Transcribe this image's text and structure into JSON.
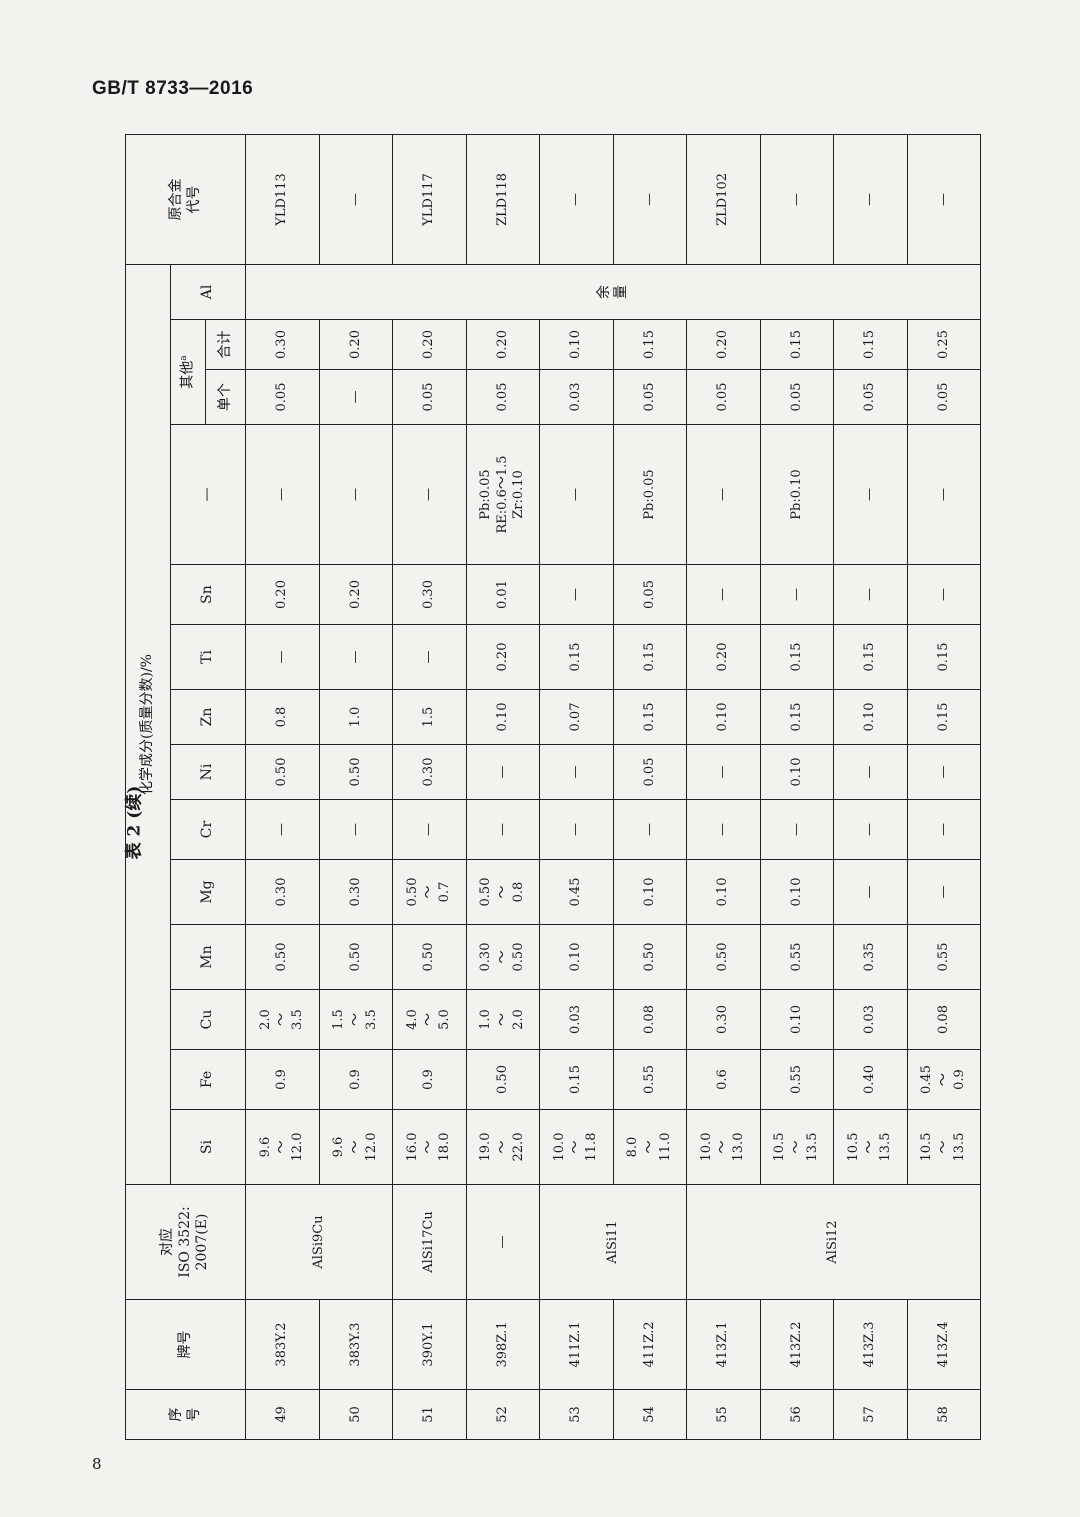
{
  "header_left": "GB/T 8733—2016",
  "page_number": "8",
  "caption": "表 2 (续)",
  "table": {
    "headers": {
      "seq": "序\n号",
      "grade": "牌号",
      "iso": "对应\nISO 3522:\n2007(E)",
      "chem": "化学成分(质量分数)/%",
      "elements": [
        "Si",
        "Fe",
        "Cu",
        "Mn",
        "Mg",
        "Cr",
        "Ni",
        "Zn",
        "Ti",
        "Sn"
      ],
      "other_elements": "—",
      "others": "其他",
      "others_note": "a",
      "single": "单个",
      "total": "合计",
      "al": "Al",
      "old_code": "原合金\n代号"
    },
    "al_value": "余\n量",
    "rows": [
      {
        "seq": "49",
        "grade": "383Y.2",
        "iso": "AlSi9Cu",
        "Si": "9.6\n～\n12.0",
        "Fe": "0.9",
        "Cu": "2.0\n～\n3.5",
        "Mn": "0.50",
        "Mg": "0.30",
        "Cr": "—",
        "Ni": "0.50",
        "Zn": "0.8",
        "Ti": "—",
        "Sn": "0.20",
        "other": "—",
        "single": "0.05",
        "total": "0.30",
        "old": "YLD113"
      },
      {
        "seq": "50",
        "grade": "383Y.3",
        "iso": "AlSi9Cu",
        "Si": "9.6\n～\n12.0",
        "Fe": "0.9",
        "Cu": "1.5\n～\n3.5",
        "Mn": "0.50",
        "Mg": "0.30",
        "Cr": "—",
        "Ni": "0.50",
        "Zn": "1.0",
        "Ti": "—",
        "Sn": "0.20",
        "other": "—",
        "single": "—",
        "total": "0.20",
        "old": "—"
      },
      {
        "seq": "51",
        "grade": "390Y.1",
        "iso": "AlSi17Cu",
        "Si": "16.0\n～\n18.0",
        "Fe": "0.9",
        "Cu": "4.0\n～\n5.0",
        "Mn": "0.50",
        "Mg": "0.50\n～\n0.7",
        "Cr": "—",
        "Ni": "0.30",
        "Zn": "1.5",
        "Ti": "—",
        "Sn": "0.30",
        "other": "—",
        "single": "0.05",
        "total": "0.20",
        "old": "YLD117"
      },
      {
        "seq": "52",
        "grade": "398Z.1",
        "iso": "—",
        "Si": "19.0\n～\n22.0",
        "Fe": "0.50",
        "Cu": "1.0\n～\n2.0",
        "Mn": "0.30\n～\n0.50",
        "Mg": "0.50\n～\n0.8",
        "Cr": "—",
        "Ni": "—",
        "Zn": "0.10",
        "Ti": "0.20",
        "Sn": "0.01",
        "other": "Pb:0.05\nRE:0.6～1.5\nZr:0.10",
        "single": "0.05",
        "total": "0.20",
        "old": "ZLD118"
      },
      {
        "seq": "53",
        "grade": "411Z.1",
        "iso": "AlSi11",
        "Si": "10.0\n～\n11.8",
        "Fe": "0.15",
        "Cu": "0.03",
        "Mn": "0.10",
        "Mg": "0.45",
        "Cr": "—",
        "Ni": "—",
        "Zn": "0.07",
        "Ti": "0.15",
        "Sn": "—",
        "other": "—",
        "single": "0.03",
        "total": "0.10",
        "old": "—"
      },
      {
        "seq": "54",
        "grade": "411Z.2",
        "iso": "AlSi11",
        "Si": "8.0\n～\n11.0",
        "Fe": "0.55",
        "Cu": "0.08",
        "Mn": "0.50",
        "Mg": "0.10",
        "Cr": "—",
        "Ni": "0.05",
        "Zn": "0.15",
        "Ti": "0.15",
        "Sn": "0.05",
        "other": "Pb:0.05",
        "single": "0.05",
        "total": "0.15",
        "old": "—"
      },
      {
        "seq": "55",
        "grade": "413Z.1",
        "iso": "AlSi12",
        "Si": "10.0\n～\n13.0",
        "Fe": "0.6",
        "Cu": "0.30",
        "Mn": "0.50",
        "Mg": "0.10",
        "Cr": "—",
        "Ni": "—",
        "Zn": "0.10",
        "Ti": "0.20",
        "Sn": "—",
        "other": "—",
        "single": "0.05",
        "total": "0.20",
        "old": "ZLD102"
      },
      {
        "seq": "56",
        "grade": "413Z.2",
        "iso": "AlSi12",
        "Si": "10.5\n～\n13.5",
        "Fe": "0.55",
        "Cu": "0.10",
        "Mn": "0.55",
        "Mg": "0.10",
        "Cr": "—",
        "Ni": "0.10",
        "Zn": "0.15",
        "Ti": "0.15",
        "Sn": "—",
        "other": "Pb:0.10",
        "single": "0.05",
        "total": "0.15",
        "old": "—"
      },
      {
        "seq": "57",
        "grade": "413Z.3",
        "iso": "AlSi12",
        "Si": "10.5\n～\n13.5",
        "Fe": "0.40",
        "Cu": "0.03",
        "Mn": "0.35",
        "Mg": "—",
        "Cr": "—",
        "Ni": "—",
        "Zn": "0.10",
        "Ti": "0.15",
        "Sn": "—",
        "other": "—",
        "single": "0.05",
        "total": "0.15",
        "old": "—"
      },
      {
        "seq": "58",
        "grade": "413Z.4",
        "iso": "AlSi12",
        "Si": "10.5\n～\n13.5",
        "Fe": "0.45\n～\n0.9",
        "Cu": "0.08",
        "Mn": "0.55",
        "Mg": "—",
        "Cr": "—",
        "Ni": "—",
        "Zn": "0.15",
        "Ti": "0.15",
        "Sn": "—",
        "other": "—",
        "single": "0.05",
        "total": "0.25",
        "old": "—"
      }
    ]
  }
}
